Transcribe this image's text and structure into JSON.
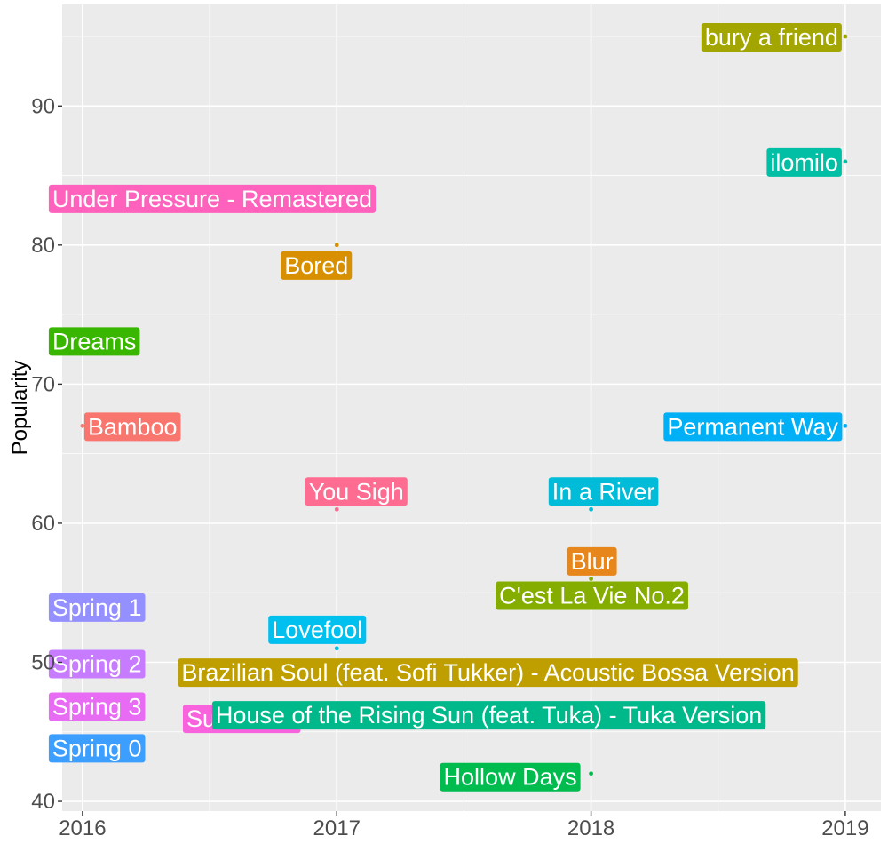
{
  "chart_data": {
    "type": "scatter",
    "title": "",
    "xlabel": "",
    "ylabel": "Popularity",
    "xlim": [
      2015.92,
      2019.14
    ],
    "ylim": [
      39.3,
      97.3
    ],
    "x_ticks": [
      2016,
      2017,
      2018,
      2019
    ],
    "x_tick_labels": [
      "2016",
      "2017",
      "2018",
      "2019"
    ],
    "y_ticks": [
      40,
      50,
      60,
      70,
      80,
      90
    ],
    "y_tick_labels": [
      "40",
      "50",
      "60",
      "70",
      "80",
      "90"
    ],
    "grid": true,
    "legend": "none",
    "points": [
      {
        "label": "bury a friend",
        "x": 2019,
        "y": 95,
        "color": "#A3A500"
      },
      {
        "label": "ilomilo",
        "x": 2019,
        "y": 86,
        "color": "#00BFA4"
      },
      {
        "label": "Under Pressure - Remastered",
        "x": 2016,
        "y": 83,
        "color": "#FF62BC"
      },
      {
        "label": "Bored",
        "x": 2017,
        "y": 80,
        "color": "#D89000"
      },
      {
        "label": "Dreams",
        "x": 2016,
        "y": 73,
        "color": "#39B600"
      },
      {
        "label": "Bamboo",
        "x": 2016,
        "y": 67,
        "color": "#F8766D"
      },
      {
        "label": "Permanent Way",
        "x": 2019,
        "y": 67,
        "color": "#00B0F6"
      },
      {
        "label": "You Sigh",
        "x": 2017,
        "y": 61,
        "color": "#FF6C91"
      },
      {
        "label": "In a River",
        "x": 2018,
        "y": 61,
        "color": "#00BCD8"
      },
      {
        "label": "Blur",
        "x": 2018,
        "y": 57,
        "color": "#E7861B"
      },
      {
        "label": "C'est La Vie No.2",
        "x": 2018,
        "y": 56,
        "color": "#85AD00"
      },
      {
        "label": "Spring 1",
        "x": 2016,
        "y": 54,
        "color": "#9590FF"
      },
      {
        "label": "Lovefool",
        "x": 2017,
        "y": 51,
        "color": "#00C0EF"
      },
      {
        "label": "Spring 2",
        "x": 2016,
        "y": 50,
        "color": "#C77CFF"
      },
      {
        "label": "Brazilian Soul (feat. Sofi Tukker) - Acoustic Bossa Version",
        "x": 2018,
        "y": 49,
        "color": "#BF9F00"
      },
      {
        "label": "Spring 3",
        "x": 2016,
        "y": 47,
        "color": "#E76BF3"
      },
      {
        "label": "Summer 1",
        "x": 2017,
        "y": 46,
        "color": "#F962DD"
      },
      {
        "label": "House of the Rising Sun (feat. Tuka) - Tuka Version",
        "x": 2018,
        "y": 46,
        "color": "#00B98A"
      },
      {
        "label": "Spring 0",
        "x": 2016,
        "y": 44,
        "color": "#3C9EFF"
      },
      {
        "label": "Hollow Days",
        "x": 2018,
        "y": 42,
        "color": "#00BB4E"
      }
    ]
  }
}
